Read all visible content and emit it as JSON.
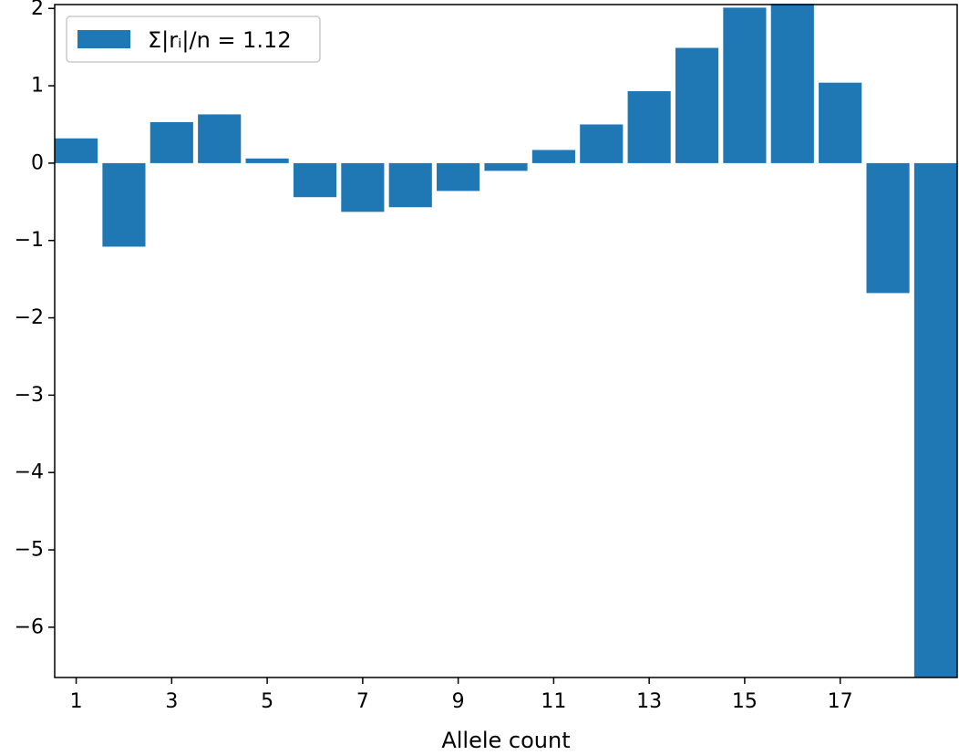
{
  "chart_data": {
    "type": "bar",
    "x": [
      1,
      2,
      3,
      4,
      5,
      6,
      7,
      8,
      9,
      10,
      11,
      12,
      13,
      14,
      15,
      16,
      17,
      18,
      19
    ],
    "values": [
      0.32,
      -1.08,
      0.53,
      0.63,
      0.06,
      -0.44,
      -0.63,
      -0.57,
      -0.36,
      -0.1,
      0.17,
      0.5,
      0.93,
      1.49,
      2.01,
      2.06,
      1.04,
      -1.68,
      -6.65
    ],
    "xticks": [
      "1",
      "3",
      "5",
      "7",
      "9",
      "11",
      "13",
      "15",
      "17"
    ],
    "yticks": [
      "2",
      "1",
      "0",
      "−1",
      "−2",
      "−3",
      "−4",
      "−5",
      "−6"
    ],
    "xlabel": "Allele count",
    "ylabel": "",
    "xlim": [
      0.55,
      19.45
    ],
    "ylim": [
      -6.65,
      2.05
    ],
    "legend": {
      "label": "Σ|rᵢ|/n = 1.12",
      "placement": "upper-left"
    },
    "grid": false,
    "bar_color": "#1f77b4"
  }
}
